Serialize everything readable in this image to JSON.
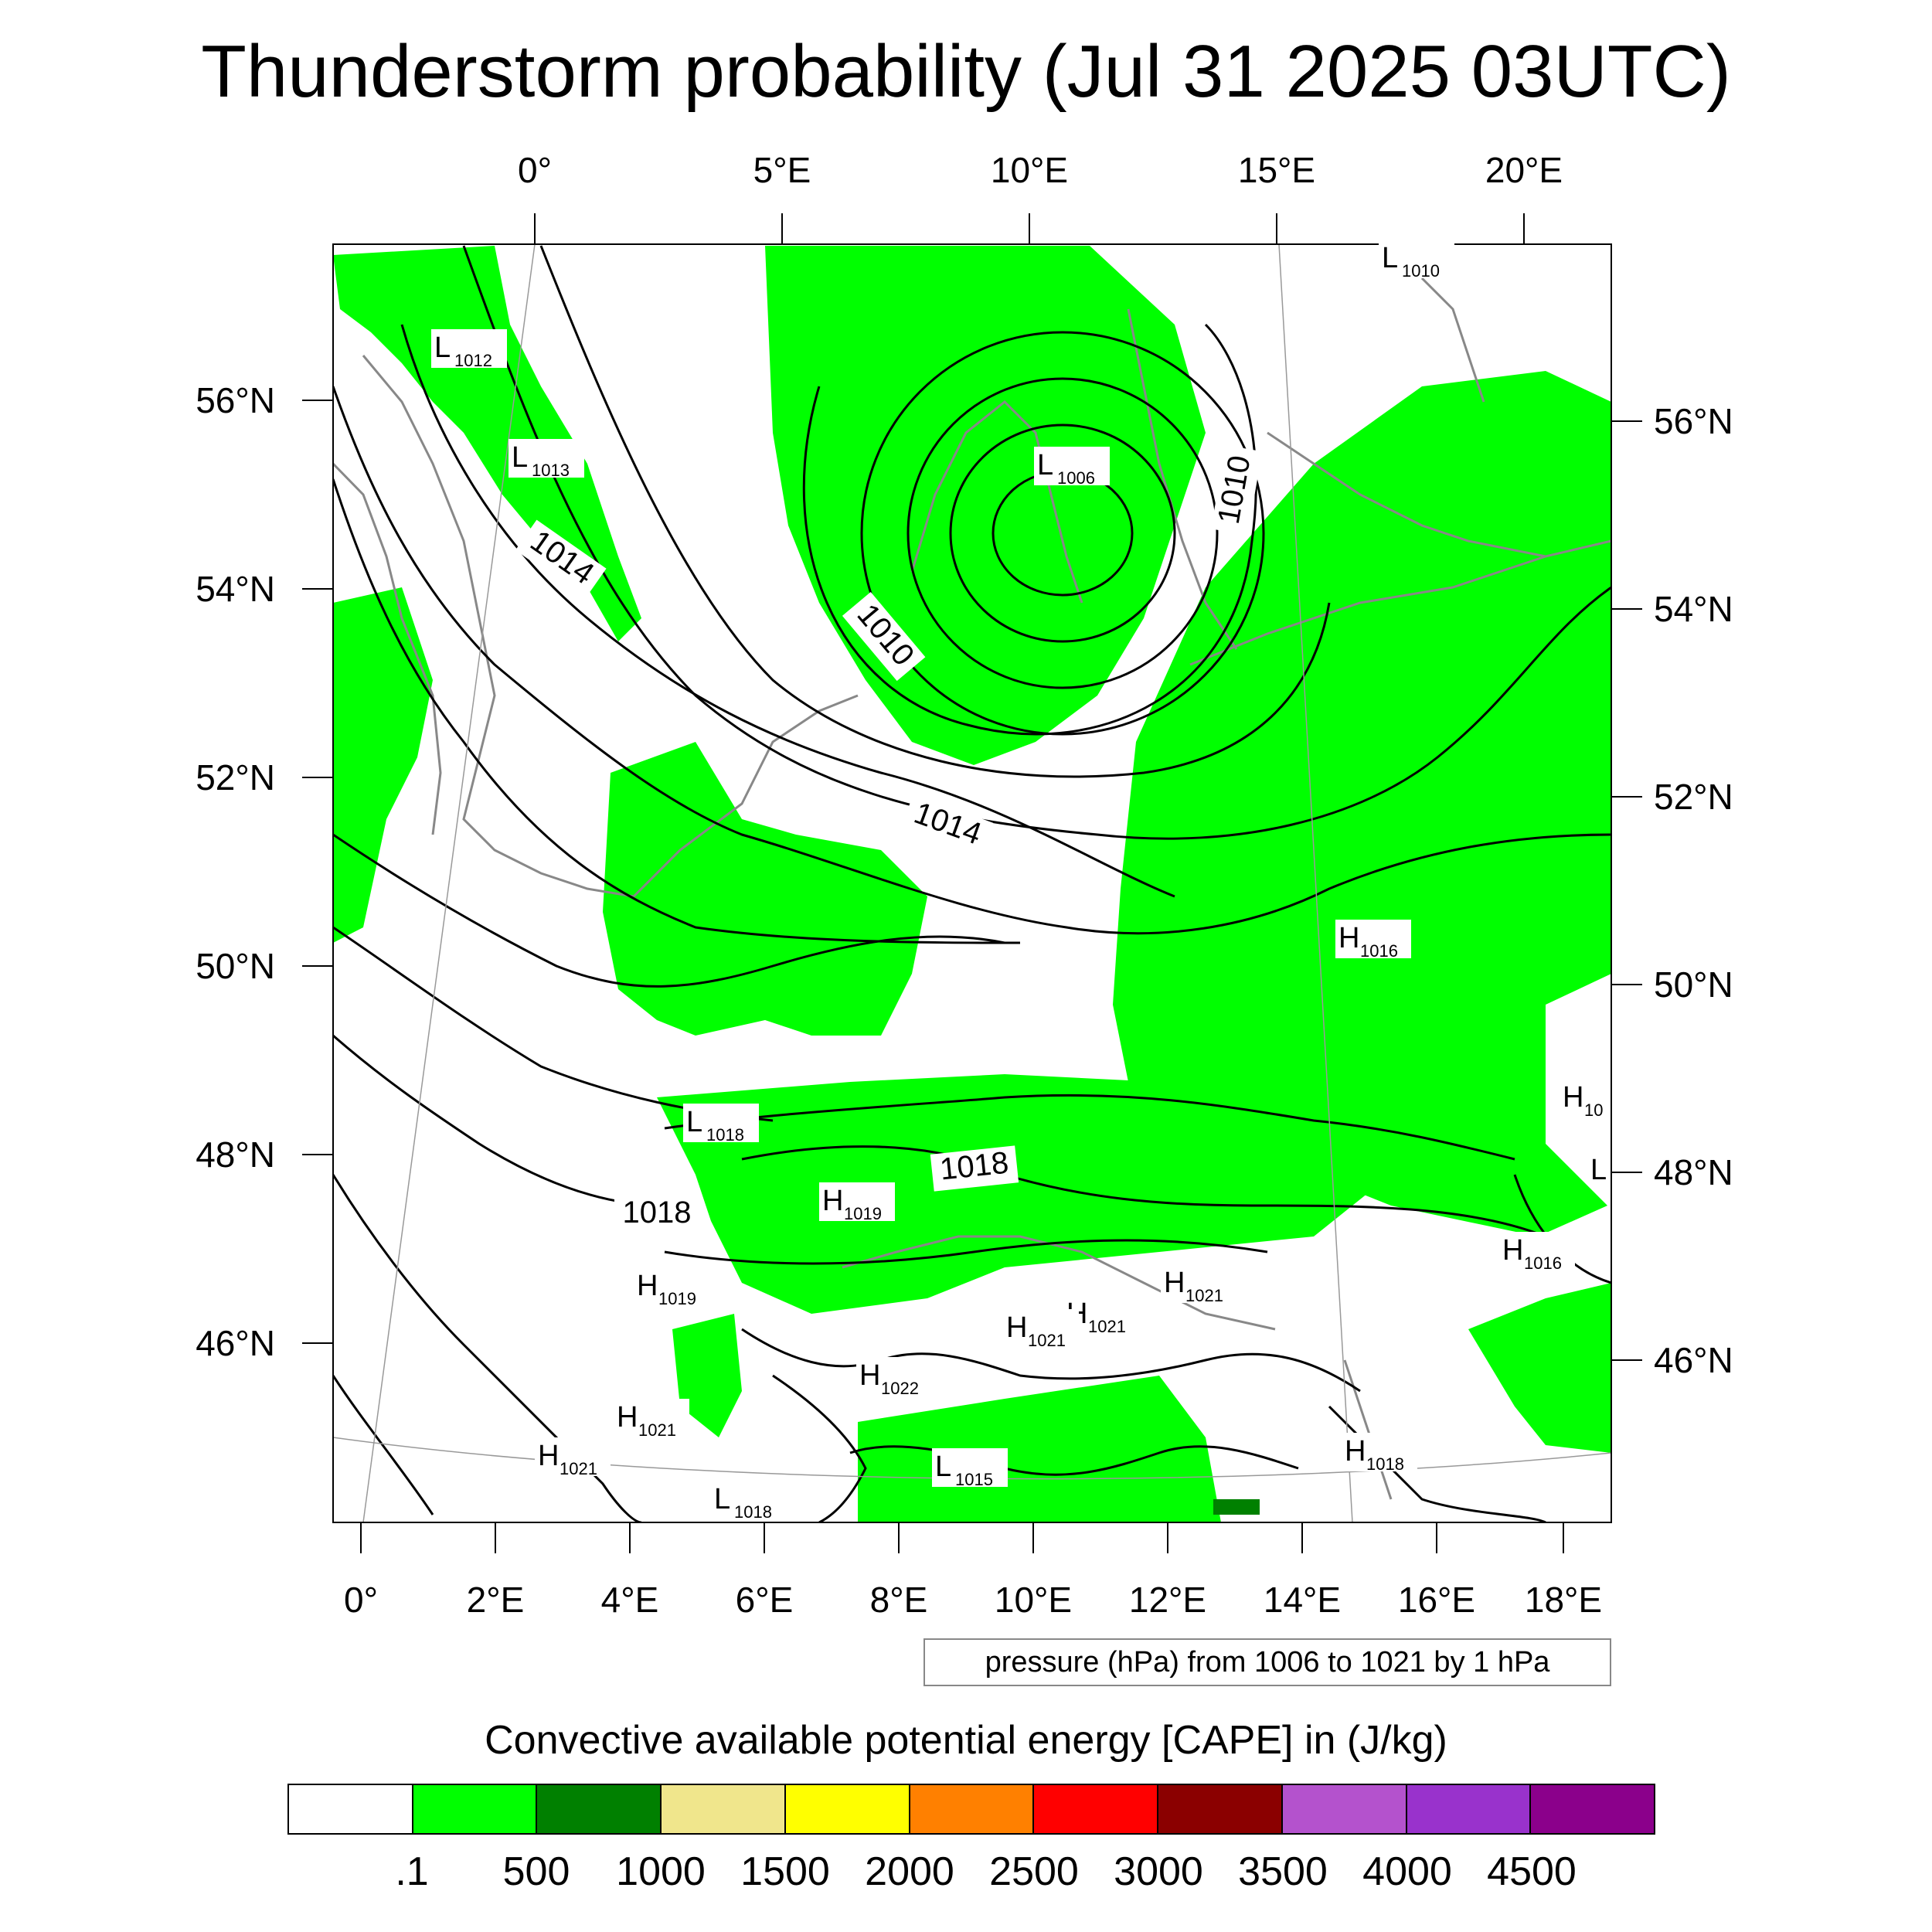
{
  "title": "Thunderstorm probability (Jul 31 2025 03UTC)",
  "top_axis_labels": [
    "0°",
    "5°E",
    "10°E",
    "15°E",
    "20°E"
  ],
  "bottom_axis_labels": [
    "0°",
    "2°E",
    "4°E",
    "6°E",
    "8°E",
    "10°E",
    "12°E",
    "14°E",
    "16°E",
    "18°E"
  ],
  "left_axis_labels": [
    "56°N",
    "54°N",
    "52°N",
    "50°N",
    "48°N",
    "46°N"
  ],
  "right_axis_labels": [
    "56°N",
    "54°N",
    "52°N",
    "50°N",
    "48°N",
    "46°N"
  ],
  "isobar_labels": [
    "1014",
    "1010",
    "1010",
    "1014",
    "1018",
    "1018"
  ],
  "pressure_centers": [
    {
      "letter": "L",
      "value": "1012"
    },
    {
      "letter": "L",
      "value": "1013"
    },
    {
      "letter": "L",
      "value": "1006"
    },
    {
      "letter": "L",
      "value": "1010"
    },
    {
      "letter": "H",
      "value": "1016"
    },
    {
      "letter": "H",
      "value": "10"
    },
    {
      "letter": "L",
      "value": ""
    },
    {
      "letter": "L",
      "value": "1018"
    },
    {
      "letter": "H",
      "value": "1019"
    },
    {
      "letter": "H",
      "value": "1019"
    },
    {
      "letter": "H",
      "value": "1016"
    },
    {
      "letter": "H",
      "value": "1021"
    },
    {
      "letter": "H",
      "value": "1021"
    },
    {
      "letter": "H",
      "value": "1021"
    },
    {
      "letter": "H",
      "value": "1022"
    },
    {
      "letter": "H",
      "value": "1021"
    },
    {
      "letter": "H",
      "value": "1021"
    },
    {
      "letter": "L",
      "value": "1015"
    },
    {
      "letter": "L",
      "value": "1018"
    },
    {
      "letter": "H",
      "value": "1018"
    }
  ],
  "pressure_note": "pressure (hPa) from 1006 to 1021 by 1 hPa",
  "cape_title": "Convective available potential energy [CAPE] in (J/kg)",
  "colorbar": {
    "colors": [
      "#ffffff",
      "#00ff00",
      "#008000",
      "#f0e68c",
      "#ffff00",
      "#ff8000",
      "#ff0000",
      "#8b0000",
      "#b452cd",
      "#9932cc",
      "#8b008b"
    ],
    "labels": [
      ".1",
      "500",
      "1000",
      "1500",
      "2000",
      "2500",
      "3000",
      "3500",
      "4000",
      "4500"
    ]
  },
  "colors": {
    "cape_low": "#00ff00",
    "cape_mid": "#008000",
    "isobar": "#000000",
    "coastline": "#888888"
  }
}
